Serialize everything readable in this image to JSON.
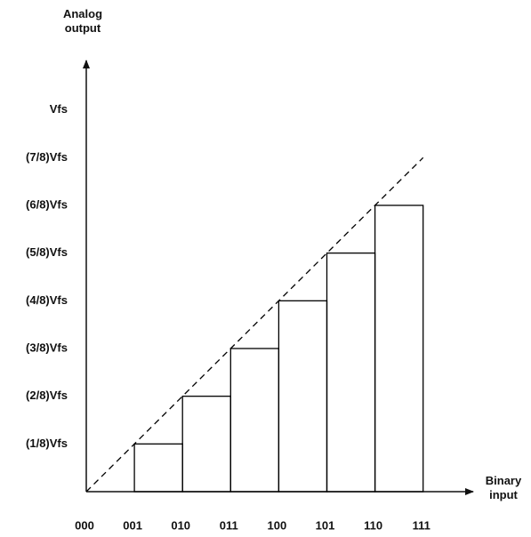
{
  "chart_data": {
    "type": "staircase",
    "y_label": "Analog output",
    "x_label": "Binary input",
    "categories": [
      "000",
      "001",
      "010",
      "011",
      "100",
      "101",
      "110",
      "111"
    ],
    "values": [
      0,
      0.125,
      0.25,
      0.375,
      0.5,
      0.625,
      0.75,
      0.875
    ],
    "color": "#000000",
    "ylim": [
      0,
      1.125
    ],
    "yticks": [
      {
        "value": 0.125,
        "label": "(1/8)Vfs"
      },
      {
        "value": 0.25,
        "label": "(2/8)Vfs"
      },
      {
        "value": 0.375,
        "label": "(3/8)Vfs"
      },
      {
        "value": 0.5,
        "label": "(4/8)Vfs"
      },
      {
        "value": 0.625,
        "label": "(5/8)Vfs"
      },
      {
        "value": 0.75,
        "label": "(6/8)Vfs"
      },
      {
        "value": 0.875,
        "label": "(7/8)Vfs"
      },
      {
        "value": 1,
        "label": "Vfs"
      }
    ],
    "grid": false
  }
}
